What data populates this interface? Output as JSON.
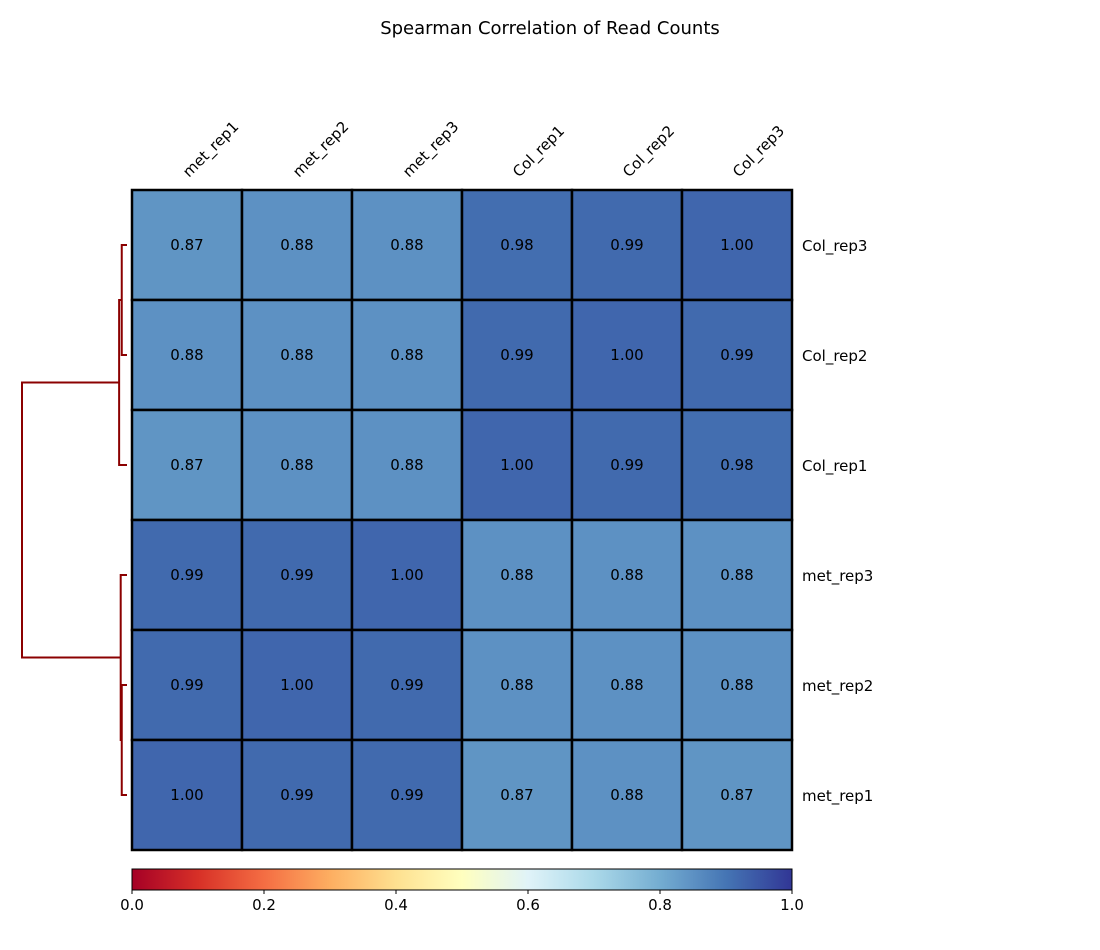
{
  "chart_data": {
    "type": "heatmap",
    "title": "Spearman Correlation of Read Counts",
    "columns": [
      "met_rep1",
      "met_rep2",
      "met_rep3",
      "Col_rep1",
      "Col_rep2",
      "Col_rep3"
    ],
    "rows": [
      "Col_rep3",
      "Col_rep2",
      "Col_rep1",
      "met_rep3",
      "met_rep2",
      "met_rep1"
    ],
    "values": [
      [
        0.87,
        0.88,
        0.88,
        0.98,
        0.99,
        1.0
      ],
      [
        0.88,
        0.88,
        0.88,
        0.99,
        1.0,
        0.99
      ],
      [
        0.87,
        0.88,
        0.88,
        1.0,
        0.99,
        0.98
      ],
      [
        0.99,
        0.99,
        1.0,
        0.88,
        0.88,
        0.88
      ],
      [
        0.99,
        1.0,
        0.99,
        0.88,
        0.88,
        0.88
      ],
      [
        1.0,
        0.99,
        0.99,
        0.87,
        0.88,
        0.87
      ]
    ],
    "value_labels": [
      [
        "0.87",
        "0.88",
        "0.88",
        "0.98",
        "0.99",
        "1.00"
      ],
      [
        "0.88",
        "0.88",
        "0.88",
        "0.99",
        "1.00",
        "0.99"
      ],
      [
        "0.87",
        "0.88",
        "0.88",
        "1.00",
        "0.99",
        "0.98"
      ],
      [
        "0.99",
        "0.99",
        "1.00",
        "0.88",
        "0.88",
        "0.88"
      ],
      [
        "0.99",
        "1.00",
        "0.99",
        "0.88",
        "0.88",
        "0.88"
      ],
      [
        "1.00",
        "0.99",
        "0.99",
        "0.87",
        "0.88",
        "0.87"
      ]
    ],
    "colormap": "RdYlBu",
    "color_range": [
      0,
      1
    ],
    "colorbar": {
      "placement": "bottom",
      "ticks": [
        0.0,
        0.2,
        0.4,
        0.6,
        0.8,
        1.0
      ],
      "tick_labels": [
        "0.0",
        "0.2",
        "0.4",
        "0.6",
        "0.8",
        "1.0"
      ]
    },
    "dendrogram": {
      "placement": "left",
      "color": "#8b0000",
      "merges": [
        {
          "left": "Col_rep2",
          "right": "Col_rep3",
          "height": 0.01
        },
        {
          "left": "Col_rep1",
          "right": "Col_rep2+Col_rep3",
          "height": 0.015
        },
        {
          "left": "met_rep1",
          "right": "met_rep2",
          "height": 0.01
        },
        {
          "left": "met_rep1+met_rep2",
          "right": "met_rep3",
          "height": 0.012
        },
        {
          "left": "Col",
          "right": "met",
          "height": 0.2
        }
      ]
    },
    "grid": true
  }
}
